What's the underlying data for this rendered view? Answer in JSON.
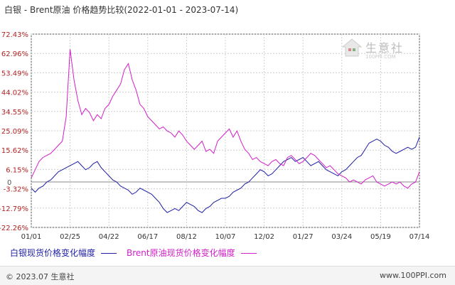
{
  "title": "白银 - Brent原油 价格趋势比较(2022-01-01 - 2023-07-14)",
  "watermark": {
    "text": "生意社",
    "sub": "100PPI.COM"
  },
  "footer": {
    "left": "© 2023.07 生意社",
    "right": "www.100PPI.com"
  },
  "colors": {
    "silver": "#1f1fa6",
    "brent": "#d21fc8",
    "grid": "#d0d0d0",
    "axis": "#555555"
  },
  "chart_data": {
    "type": "line",
    "title": "白银 - Brent原油 价格趋势比较(2022-01-01 - 2023-07-14)",
    "x_tick_labels": [
      "01/01",
      "02/25",
      "04/22",
      "06/17",
      "08/12",
      "10/07",
      "12/02",
      "01/27",
      "03/24",
      "05/19",
      "07/14"
    ],
    "y_tick_labels": [
      "72.43%",
      "62.96%",
      "53.49%",
      "44.02%",
      "34.55%",
      "25.09%",
      "15.62%",
      "6.15%",
      "-3.32%",
      "-12.79%",
      "-22.26%"
    ],
    "y_ticks": [
      72.43,
      62.96,
      53.49,
      44.02,
      34.55,
      25.09,
      15.62,
      6.15,
      -3.32,
      -12.79,
      -22.26
    ],
    "zero_label": "0",
    "ylim": [
      -22.26,
      72.43
    ],
    "x_range": [
      0,
      10
    ],
    "grid": true,
    "legend_position": "bottom",
    "series": [
      {
        "name": "白银现货价格变化幅度",
        "color": "#1f1fa6",
        "x": [
          0,
          0.1,
          0.2,
          0.3,
          0.4,
          0.5,
          0.6,
          0.7,
          0.8,
          0.9,
          1.0,
          1.1,
          1.2,
          1.3,
          1.4,
          1.5,
          1.6,
          1.7,
          1.8,
          1.9,
          2.0,
          2.1,
          2.2,
          2.3,
          2.4,
          2.5,
          2.6,
          2.7,
          2.8,
          2.9,
          3.0,
          3.1,
          3.2,
          3.3,
          3.4,
          3.5,
          3.6,
          3.7,
          3.8,
          3.9,
          4.0,
          4.1,
          4.2,
          4.3,
          4.4,
          4.5,
          4.6,
          4.7,
          4.8,
          4.9,
          5.0,
          5.1,
          5.2,
          5.3,
          5.4,
          5.5,
          5.6,
          5.7,
          5.8,
          5.9,
          6.0,
          6.1,
          6.2,
          6.3,
          6.4,
          6.5,
          6.6,
          6.7,
          6.8,
          6.9,
          7.0,
          7.1,
          7.2,
          7.3,
          7.4,
          7.5,
          7.6,
          7.7,
          7.8,
          7.9,
          8.0,
          8.1,
          8.2,
          8.3,
          8.4,
          8.5,
          8.6,
          8.7,
          8.8,
          8.9,
          9.0,
          9.1,
          9.2,
          9.3,
          9.4,
          9.5,
          9.6,
          9.7,
          9.8,
          9.9,
          10.0
        ],
        "values": [
          -3,
          -5,
          -3,
          -2,
          0,
          1,
          3,
          5,
          6,
          7,
          8,
          9,
          10,
          8,
          6,
          7,
          9,
          10,
          7,
          5,
          3,
          1,
          0,
          -2,
          -3,
          -4,
          -6,
          -5,
          -3,
          -4,
          -5,
          -6,
          -8,
          -10,
          -13,
          -15,
          -14,
          -13,
          -14,
          -12,
          -10,
          -11,
          -12,
          -14,
          -15,
          -13,
          -12,
          -10,
          -9,
          -8,
          -8,
          -7,
          -5,
          -4,
          -3,
          -1,
          0,
          2,
          4,
          6,
          5,
          3,
          4,
          6,
          8,
          10,
          11,
          12,
          10,
          11,
          12,
          10,
          8,
          9,
          10,
          8,
          6,
          5,
          4,
          3,
          5,
          6,
          8,
          10,
          12,
          13,
          16,
          19,
          20,
          21,
          20,
          18,
          17,
          15,
          14,
          15,
          16,
          17,
          16,
          17,
          22
        ]
      },
      {
        "name": "Brent原油现货价格变化幅度",
        "color": "#d21fc8",
        "x": [
          0,
          0.1,
          0.2,
          0.3,
          0.4,
          0.5,
          0.6,
          0.7,
          0.8,
          0.9,
          1.0,
          1.1,
          1.2,
          1.3,
          1.4,
          1.5,
          1.6,
          1.7,
          1.8,
          1.9,
          2.0,
          2.1,
          2.2,
          2.3,
          2.4,
          2.5,
          2.6,
          2.7,
          2.8,
          2.9,
          3.0,
          3.1,
          3.2,
          3.3,
          3.4,
          3.5,
          3.6,
          3.7,
          3.8,
          3.9,
          4.0,
          4.1,
          4.2,
          4.3,
          4.4,
          4.5,
          4.6,
          4.7,
          4.8,
          4.9,
          5.0,
          5.1,
          5.2,
          5.3,
          5.4,
          5.5,
          5.6,
          5.7,
          5.8,
          5.9,
          6.0,
          6.1,
          6.2,
          6.3,
          6.4,
          6.5,
          6.6,
          6.7,
          6.8,
          6.9,
          7.0,
          7.1,
          7.2,
          7.3,
          7.4,
          7.5,
          7.6,
          7.7,
          7.8,
          7.9,
          8.0,
          8.1,
          8.2,
          8.3,
          8.4,
          8.5,
          8.6,
          8.7,
          8.8,
          8.9,
          9.0,
          9.1,
          9.2,
          9.3,
          9.4,
          9.5,
          9.6,
          9.7,
          9.8,
          9.9,
          10.0
        ],
        "values": [
          2,
          6,
          10,
          12,
          13,
          14,
          16,
          18,
          20,
          32,
          65,
          50,
          40,
          33,
          36,
          34,
          30,
          33,
          31,
          36,
          38,
          42,
          45,
          48,
          55,
          58,
          50,
          45,
          38,
          36,
          32,
          30,
          28,
          26,
          27,
          25,
          24,
          22,
          25,
          23,
          20,
          18,
          16,
          18,
          20,
          15,
          16,
          14,
          20,
          22,
          24,
          26,
          22,
          25,
          20,
          16,
          14,
          11,
          12,
          10,
          9,
          8,
          10,
          11,
          9,
          8,
          12,
          13,
          11,
          9,
          10,
          12,
          14,
          13,
          11,
          9,
          7,
          8,
          6,
          4,
          3,
          2,
          0,
          1,
          0,
          -1,
          1,
          2,
          3,
          0,
          -1,
          -2,
          -1,
          0,
          -1,
          0,
          -2,
          -3,
          -1,
          0,
          5
        ]
      }
    ]
  }
}
